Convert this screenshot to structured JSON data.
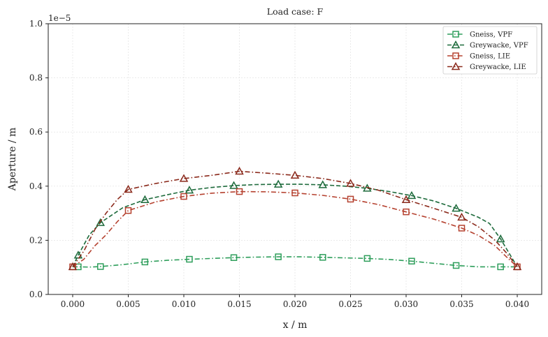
{
  "chart_data": {
    "type": "line",
    "title": "Load case: F",
    "xlabel": "x / m",
    "ylabel": "Aperture / m",
    "offset_text": "1e−5",
    "xlim": [
      -0.0022,
      0.0422
    ],
    "ylim": [
      0,
      1.0
    ],
    "x_ticks": [
      0.0,
      0.005,
      0.01,
      0.015,
      0.02,
      0.025,
      0.03,
      0.035,
      0.04
    ],
    "x_tick_labels": [
      "0.000",
      "0.005",
      "0.010",
      "0.015",
      "0.020",
      "0.025",
      "0.030",
      "0.035",
      "0.040"
    ],
    "y_ticks": [
      0.0,
      0.2,
      0.4,
      0.6,
      0.8,
      1.0
    ],
    "y_tick_labels": [
      "0.0",
      "0.2",
      "0.4",
      "0.6",
      "0.8",
      "1.0"
    ],
    "grid": true,
    "legend_position": "top-right",
    "series": [
      {
        "name": "Gneiss, VPF",
        "color": "#2e9e5b",
        "marker": "square",
        "dash": "dashdot",
        "x": [
          0.0005,
          0.0025,
          0.0065,
          0.0105,
          0.0145,
          0.0185,
          0.0225,
          0.0265,
          0.0305,
          0.0345,
          0.0385
        ],
        "y": [
          0.102,
          0.103,
          0.12,
          0.13,
          0.136,
          0.139,
          0.137,
          0.133,
          0.123,
          0.107,
          0.102
        ],
        "curve_x": [
          0.0,
          0.0005,
          0.0015,
          0.0025,
          0.0045,
          0.0065,
          0.0085,
          0.0105,
          0.0125,
          0.0145,
          0.0165,
          0.0185,
          0.0205,
          0.0225,
          0.0245,
          0.0265,
          0.0285,
          0.0305,
          0.0325,
          0.0345,
          0.0365,
          0.0385,
          0.04
        ],
        "curve_y": [
          0.102,
          0.102,
          0.101,
          0.103,
          0.11,
          0.12,
          0.126,
          0.13,
          0.133,
          0.136,
          0.138,
          0.139,
          0.139,
          0.137,
          0.135,
          0.133,
          0.129,
          0.123,
          0.115,
          0.107,
          0.102,
          0.102,
          0.102
        ]
      },
      {
        "name": "Greywacke, VPF",
        "color": "#1e6b3c",
        "marker": "triangle",
        "dash": "dashed",
        "x": [
          0.0005,
          0.0025,
          0.0065,
          0.0105,
          0.0145,
          0.0185,
          0.0225,
          0.0265,
          0.0305,
          0.0345,
          0.0385
        ],
        "y": [
          0.145,
          0.265,
          0.35,
          0.385,
          0.402,
          0.407,
          0.405,
          0.392,
          0.365,
          0.318,
          0.205
        ],
        "curve_x": [
          0.0,
          0.0005,
          0.0015,
          0.0025,
          0.0045,
          0.0065,
          0.0085,
          0.0105,
          0.0125,
          0.0145,
          0.0165,
          0.0185,
          0.0205,
          0.0225,
          0.0245,
          0.0265,
          0.0285,
          0.0305,
          0.0325,
          0.0345,
          0.0365,
          0.0375,
          0.0385,
          0.0393,
          0.04
        ],
        "curve_y": [
          0.102,
          0.145,
          0.22,
          0.265,
          0.32,
          0.35,
          0.368,
          0.385,
          0.395,
          0.402,
          0.406,
          0.407,
          0.407,
          0.405,
          0.4,
          0.392,
          0.38,
          0.365,
          0.345,
          0.318,
          0.285,
          0.262,
          0.205,
          0.15,
          0.102
        ]
      },
      {
        "name": "Gneiss, LIE",
        "color": "#b5412f",
        "marker": "square",
        "dash": "dashdot",
        "x": [
          0.0,
          0.005,
          0.01,
          0.015,
          0.02,
          0.025,
          0.03,
          0.035,
          0.04
        ],
        "y": [
          0.102,
          0.31,
          0.362,
          0.38,
          0.375,
          0.352,
          0.305,
          0.245,
          0.102
        ],
        "curve_x": [
          0.0,
          0.001,
          0.002,
          0.003,
          0.004,
          0.005,
          0.0075,
          0.01,
          0.0125,
          0.015,
          0.0175,
          0.02,
          0.0225,
          0.025,
          0.0275,
          0.03,
          0.0325,
          0.035,
          0.0365,
          0.038,
          0.039,
          0.04
        ],
        "curve_y": [
          0.102,
          0.13,
          0.18,
          0.22,
          0.268,
          0.31,
          0.342,
          0.362,
          0.374,
          0.38,
          0.379,
          0.375,
          0.366,
          0.352,
          0.332,
          0.305,
          0.278,
          0.245,
          0.218,
          0.18,
          0.14,
          0.102
        ]
      },
      {
        "name": "Greywacke, LIE",
        "color": "#8b2a1c",
        "marker": "triangle",
        "dash": "dashdot",
        "x": [
          0.0,
          0.005,
          0.01,
          0.015,
          0.02,
          0.025,
          0.03,
          0.035,
          0.04
        ],
        "y": [
          0.102,
          0.388,
          0.428,
          0.455,
          0.44,
          0.41,
          0.35,
          0.285,
          0.102
        ],
        "curve_x": [
          0.0,
          0.001,
          0.002,
          0.003,
          0.004,
          0.005,
          0.0075,
          0.01,
          0.0125,
          0.015,
          0.0175,
          0.02,
          0.0225,
          0.025,
          0.0275,
          0.03,
          0.0325,
          0.035,
          0.0365,
          0.038,
          0.039,
          0.04
        ],
        "curve_y": [
          0.102,
          0.16,
          0.24,
          0.3,
          0.35,
          0.388,
          0.41,
          0.428,
          0.44,
          0.455,
          0.448,
          0.44,
          0.428,
          0.41,
          0.385,
          0.35,
          0.318,
          0.285,
          0.25,
          0.2,
          0.155,
          0.102
        ]
      }
    ]
  }
}
